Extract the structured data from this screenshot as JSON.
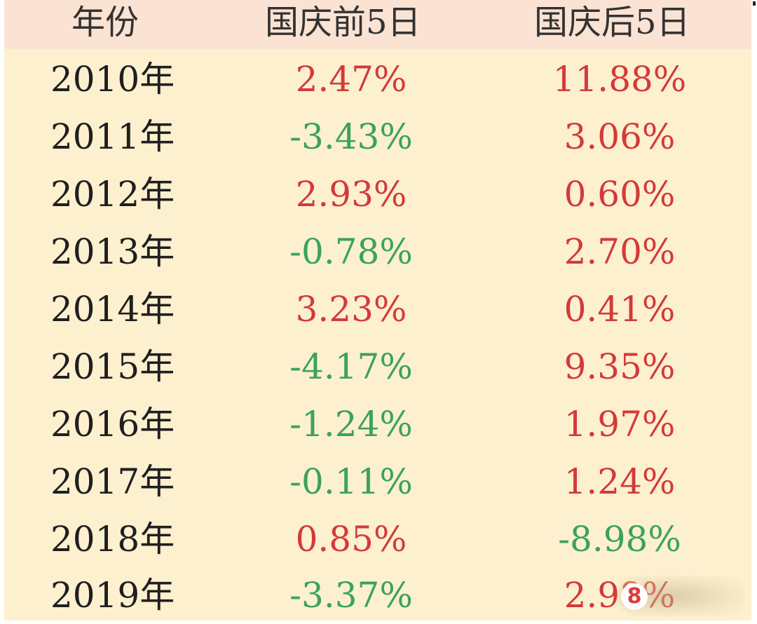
{
  "table": {
    "headers": {
      "year": "年份",
      "before": "国庆前5日",
      "after": "国庆后5日"
    },
    "rows": [
      {
        "year": "2010年",
        "before": "2.47%",
        "after": "11.88%"
      },
      {
        "year": "2011年",
        "before": "-3.43%",
        "after": "3.06%"
      },
      {
        "year": "2012年",
        "before": "2.93%",
        "after": "0.60%"
      },
      {
        "year": "2013年",
        "before": "-0.78%",
        "after": "2.70%"
      },
      {
        "year": "2014年",
        "before": "3.23%",
        "after": "0.41%"
      },
      {
        "year": "2015年",
        "before": "-4.17%",
        "after": "9.35%"
      },
      {
        "year": "2016年",
        "before": "-1.24%",
        "after": "1.97%"
      },
      {
        "year": "2017年",
        "before": "-0.11%",
        "after": "1.24%"
      },
      {
        "year": "2018年",
        "before": "0.85%",
        "after": "-8.98%"
      },
      {
        "year": "2019年",
        "before": "-3.37%",
        "after": "2.98%"
      }
    ]
  },
  "watermark": {
    "badge": "8"
  },
  "colors": {
    "background": "#fdf0cf",
    "header_background": "#fbe3d3",
    "positive": "#d33a38",
    "negative": "#3aa35a",
    "text": "#1f1f1f"
  }
}
